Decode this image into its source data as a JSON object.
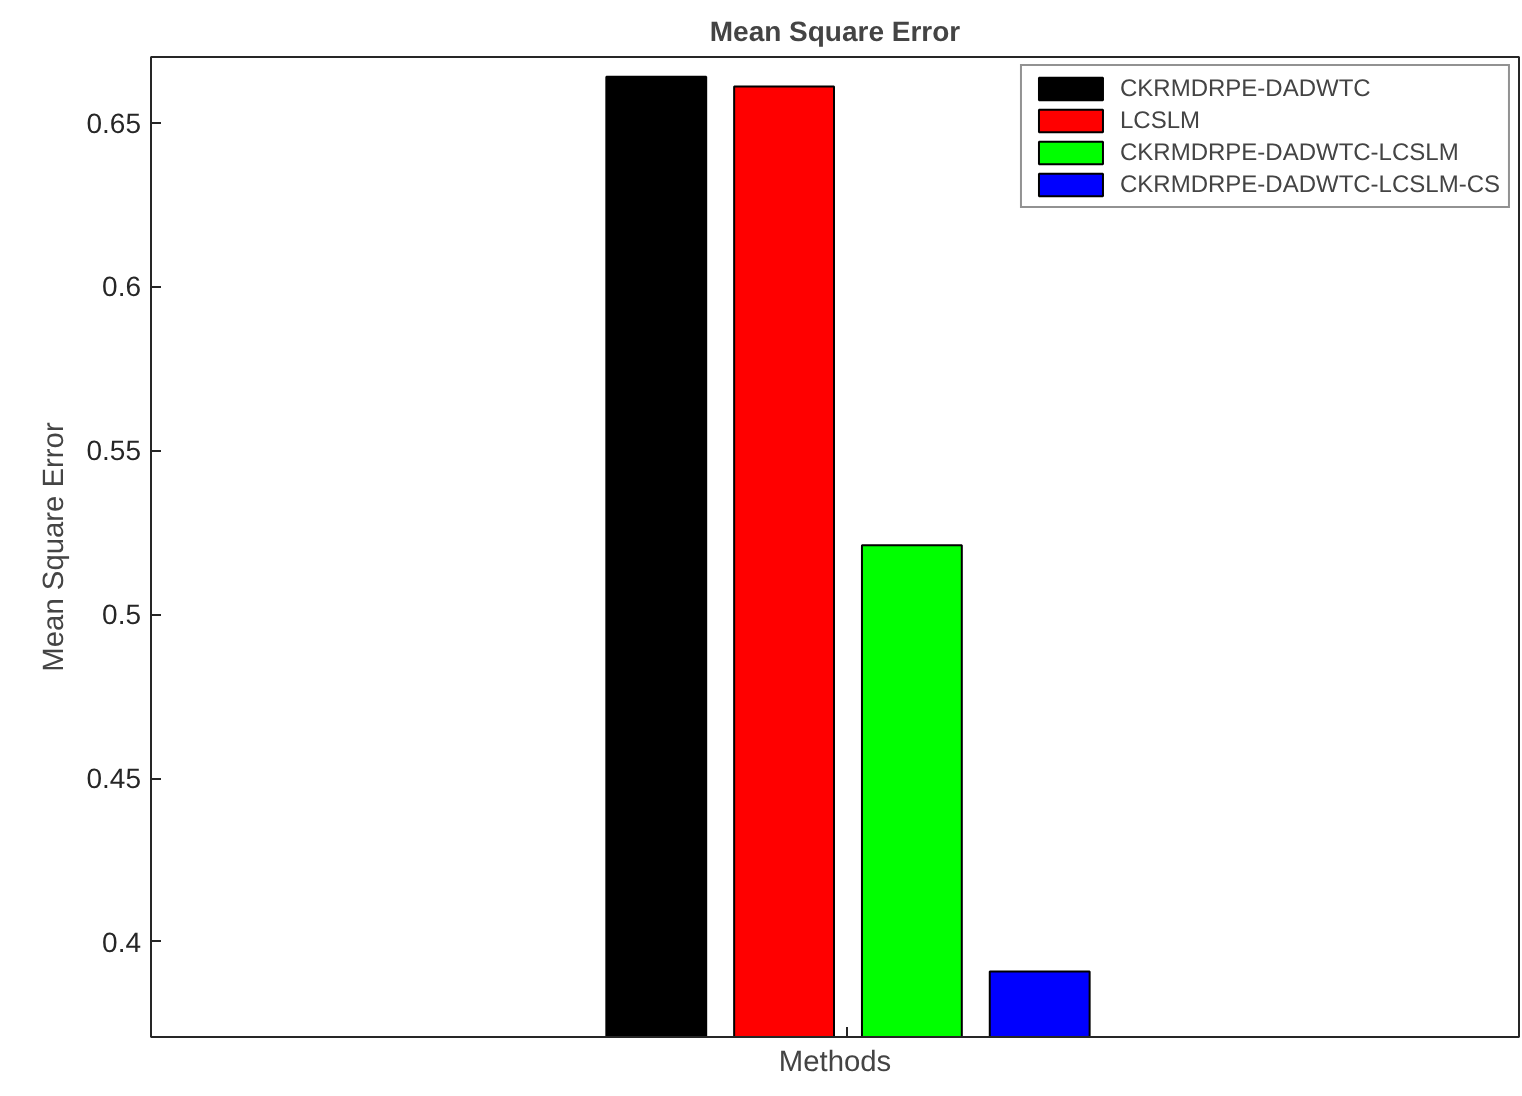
{
  "chart_data": {
    "type": "bar",
    "title": "Mean Square Error",
    "xlabel": "Methods",
    "ylabel": "Mean Square Error",
    "categories": [
      null
    ],
    "series": [
      {
        "name": "CKRMDRPE-DADWTC",
        "color": "#000000",
        "values": [
          0.664
        ]
      },
      {
        "name": "LCSLM",
        "color": "#ff0000",
        "values": [
          0.661
        ]
      },
      {
        "name": "CKRMDRPE-DADWTC-LCSLM",
        "color": "#00ff00",
        "values": [
          0.521
        ]
      },
      {
        "name": "CKRMDRPE-DADWTC-LCSLM-CS",
        "color": "#0000ff",
        "values": [
          0.391
        ]
      }
    ],
    "ylim": [
      0.371,
      0.67
    ],
    "yticks": [
      0.4,
      0.45,
      0.5,
      0.55,
      0.6,
      0.65
    ],
    "grid": false,
    "legend": "top right"
  }
}
